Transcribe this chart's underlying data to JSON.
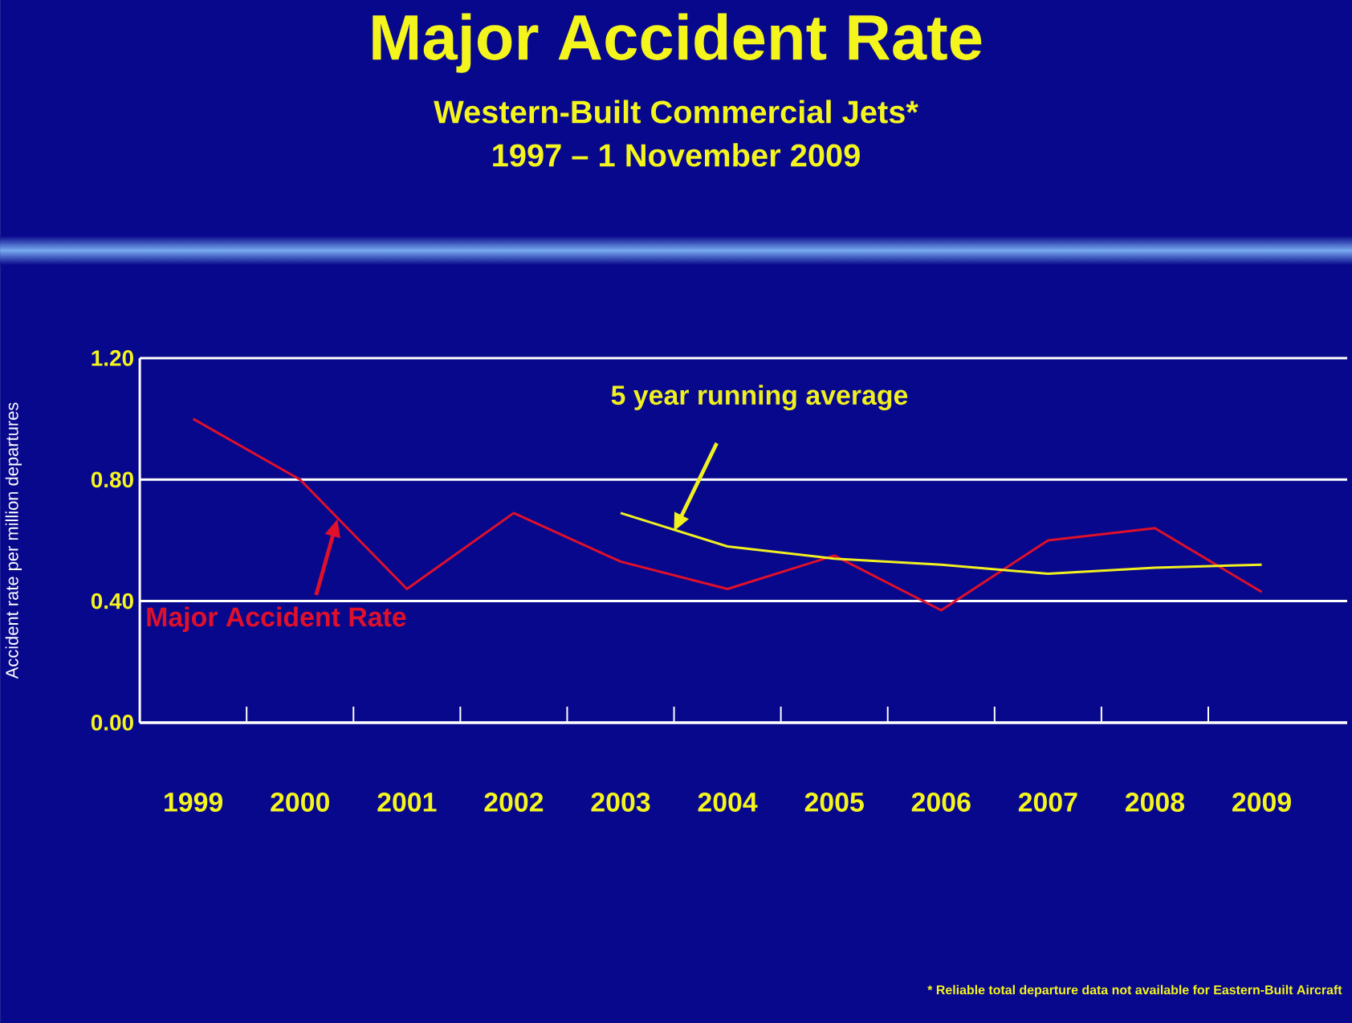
{
  "chart_data": {
    "type": "line",
    "title": "Major Accident Rate",
    "subtitle": "Western-Built Commercial Jets*",
    "annotations": [
      "1997 – 1 November 2009",
      "* Reliable total departure data not available for Eastern-Built Aircraft"
    ],
    "ylabel": "Accident rate per million departures",
    "categories": [
      "1999",
      "2000",
      "2001",
      "2002",
      "2003",
      "2004",
      "2005",
      "2006",
      "2007",
      "2008",
      "2009"
    ],
    "series": [
      {
        "name": "Major Accident Rate",
        "color": "#e0102a",
        "values": [
          1.0,
          0.8,
          0.44,
          0.69,
          0.53,
          0.44,
          0.55,
          0.37,
          0.6,
          0.64,
          0.43
        ]
      },
      {
        "name": "5 year running average",
        "color": "#f0f020",
        "values": [
          null,
          null,
          null,
          null,
          0.69,
          0.58,
          0.54,
          0.52,
          0.49,
          0.51,
          0.52
        ]
      }
    ],
    "ylim": [
      0,
      1.2
    ],
    "yticks": [
      {
        "value": 0,
        "label": "0.00"
      },
      {
        "value": 0.4,
        "label": "0.40"
      },
      {
        "value": 0.8,
        "label": "0.80"
      },
      {
        "value": 1.2,
        "label": "1.20"
      }
    ],
    "grid": "y",
    "marker": "none",
    "line_style": "solid"
  }
}
